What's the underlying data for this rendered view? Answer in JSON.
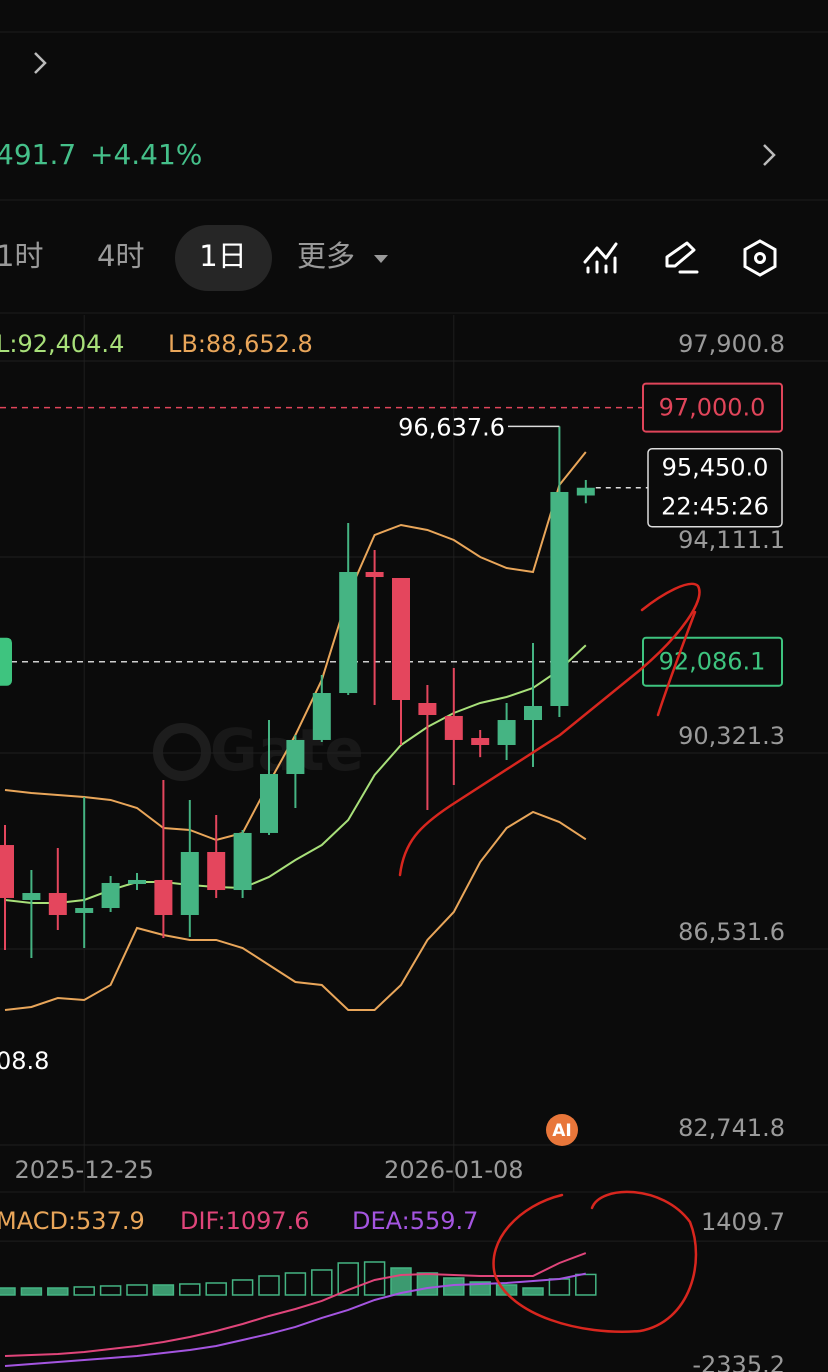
{
  "header": {
    "price_partial": "491.7",
    "change": "+4.41%"
  },
  "tabs": [
    "1时",
    "4时",
    "1日",
    "更多"
  ],
  "watermark": "Gate",
  "ai_badge": "AI",
  "chart_data": [
    {
      "type": "candlestick",
      "categories": [
        null,
        null,
        null,
        "2025-12-25",
        null,
        null,
        null,
        null,
        null,
        null,
        null,
        null,
        null,
        null,
        null,
        null,
        null,
        "2026-01-08",
        null,
        null,
        null,
        null,
        null
      ],
      "open": [
        88542,
        87479,
        87614,
        87228,
        87324,
        87788,
        87866,
        87189,
        88407,
        87672,
        88775,
        89915,
        90573,
        91481,
        93821,
        93705,
        91288,
        91037,
        90611,
        90476,
        90959,
        91230,
        95300
      ],
      "high": [
        88929,
        88059,
        88485,
        89471,
        87943,
        88001,
        89799,
        89413,
        89123,
        88832,
        90959,
        90669,
        91829,
        94768,
        94246,
        93705,
        91636,
        91965,
        90766,
        91288,
        92448,
        96637.6,
        95600
      ],
      "low": [
        86512,
        86358,
        86899,
        86551,
        87247,
        87672,
        86744,
        86763,
        87518,
        87518,
        88736,
        89258,
        90534,
        91443,
        91249,
        90476,
        89219,
        89702,
        90241,
        90186,
        90051,
        91017,
        95150
      ],
      "close": [
        87518,
        87614,
        87189,
        87324,
        87808,
        87866,
        87189,
        88407,
        87672,
        88775,
        89915,
        90573,
        91481,
        93821,
        93724,
        91346,
        91056,
        90573,
        90476,
        90959,
        91230,
        95368,
        95450
      ],
      "up_color": "#45b483",
      "down_color": "#e4465d",
      "overlays": [
        {
          "color": "#e9a65a",
          "values": [
            89606,
            89548,
            89509,
            89471,
            89413,
            89258,
            88871,
            88833,
            88639,
            88775,
            89741,
            90669,
            91733,
            93376,
            94536,
            94730,
            94633,
            94440,
            94111,
            93898,
            93821,
            95503,
            96141
          ]
        },
        {
          "color": "#a8e07a",
          "values": [
            87479,
            87421,
            87421,
            87479,
            87672,
            87827,
            87827,
            87769,
            87730,
            87711,
            87924,
            88252,
            88542,
            89026,
            89896,
            90476,
            90824,
            91095,
            91288,
            91404,
            91578,
            91926,
            92404.4
          ]
        },
        {
          "color": "#e9a65a",
          "values": [
            85352,
            85410,
            85584,
            85546,
            85836,
            86938,
            86802,
            86706,
            86706,
            86551,
            86222,
            85894,
            85836,
            85352,
            85352,
            85836,
            86706,
            87247,
            88214,
            88871,
            89181,
            88987,
            88652.8
          ]
        }
      ],
      "indicator_labels": [
        {
          "text": "L:92,404.4",
          "color": "#a8e07a"
        },
        {
          "text": "LB:88,652.8",
          "color": "#e9a65a"
        }
      ],
      "ylim": [
        82741.8,
        98790
      ],
      "yticks": [
        {
          "value": 97900.8,
          "label": "97,900.8"
        },
        {
          "value": 94111.1,
          "label": "94,111.1"
        },
        {
          "value": 90321.3,
          "label": "90,321.3"
        },
        {
          "value": 86531.6,
          "label": "86,531.6"
        },
        {
          "value": 82741.8,
          "label": "82,741.8"
        }
      ],
      "price_lines": [
        {
          "value": 97000,
          "label": "97,000.0",
          "color": "#e0455a"
        },
        {
          "value": 92086.1,
          "label": "92,086.1",
          "color": "#3ec47f"
        }
      ],
      "current": {
        "value": 95450,
        "label": "95,450.0",
        "time": "22:45:26"
      },
      "high_marker": {
        "value": 96637.6,
        "label": "96,637.6"
      },
      "low_marker_text": "08.8",
      "grid": true
    },
    {
      "type": "macd",
      "labels": [
        {
          "text": "MACD:537.9",
          "color": "#e9a65a"
        },
        {
          "text": "DIF:1097.6",
          "color": "#e0457a"
        },
        {
          "text": "DEA:559.7",
          "color": "#a455e0"
        }
      ],
      "histogram": [
        183,
        183,
        183,
        210,
        236,
        262,
        262,
        288,
        314,
        393,
        498,
        576,
        655,
        838,
        864,
        707,
        576,
        445,
        340,
        262,
        183,
        419,
        537.9
      ],
      "histogram_color": "#45b483",
      "lines": [
        {
          "color": "#e0457a",
          "values": [
            -1598,
            -1571,
            -1545,
            -1493,
            -1414,
            -1336,
            -1231,
            -1100,
            -943,
            -760,
            -550,
            -367,
            -157,
            131,
            393,
            524,
            550,
            524,
            498,
            498,
            498,
            838,
            1097.6
          ]
        },
        {
          "color": "#a455e0",
          "values": [
            -1859,
            -1807,
            -1755,
            -1702,
            -1650,
            -1598,
            -1519,
            -1440,
            -1336,
            -1179,
            -1021,
            -838,
            -602,
            -393,
            -131,
            52,
            183,
            262,
            288,
            314,
            367,
            419,
            559.7
          ]
        }
      ],
      "ylim": [
        -2400,
        2619
      ],
      "yticks": [
        1409.7,
        -2335.2
      ]
    }
  ]
}
